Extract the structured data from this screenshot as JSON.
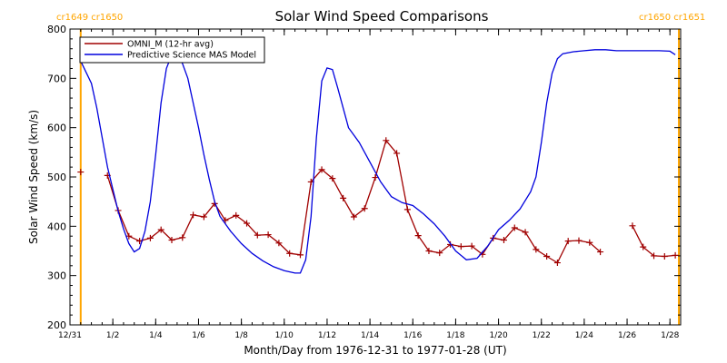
{
  "chart_data": {
    "type": "line",
    "title": "Solar Wind Speed Comparisons",
    "xlabel": "Month/Day from 1976-12-31 to 1977-01-28 (UT)",
    "ylabel": "Solar Wind Speed (km/s)",
    "ylim": [
      200,
      800
    ],
    "xlim": [
      "1976-12-31",
      "1977-01-28T12:00"
    ],
    "y_ticks": [
      200,
      300,
      400,
      500,
      600,
      700,
      800
    ],
    "x_ticks": [
      {
        "x": "1976-12-31",
        "label": "12/31"
      },
      {
        "x": "1977-01-02",
        "label": "1/2"
      },
      {
        "x": "1977-01-04",
        "label": "1/4"
      },
      {
        "x": "1977-01-06",
        "label": "1/6"
      },
      {
        "x": "1977-01-08",
        "label": "1/8"
      },
      {
        "x": "1977-01-10",
        "label": "1/10"
      },
      {
        "x": "1977-01-12",
        "label": "1/12"
      },
      {
        "x": "1977-01-14",
        "label": "1/14"
      },
      {
        "x": "1977-01-16",
        "label": "1/16"
      },
      {
        "x": "1977-01-18",
        "label": "1/18"
      },
      {
        "x": "1977-01-20",
        "label": "1/20"
      },
      {
        "x": "1977-01-22",
        "label": "1/22"
      },
      {
        "x": "1977-01-24",
        "label": "1/24"
      },
      {
        "x": "1977-01-26",
        "label": "1/26"
      },
      {
        "x": "1977-01-28",
        "label": "1/28"
      }
    ],
    "legend_position": "top-left",
    "vlines": [
      {
        "x": "1976-12-31T12:00",
        "label": "cr1649 cr1650",
        "color": "#ffa500",
        "label_side": "left"
      },
      {
        "x": "1977-01-28T10:00",
        "label": "cr1650 cr1651",
        "color": "#ffa500",
        "label_side": "right"
      }
    ],
    "series": [
      {
        "name": "OMNI_M (12-hr avg)",
        "color": "#a00000",
        "marker": "+",
        "segments": [
          [
            [
              "1976-12-31T12:00",
              510
            ]
          ],
          [
            [
              "1977-01-01T18:00",
              503
            ],
            [
              "1977-01-02T06:00",
              432
            ],
            [
              "1977-01-02T18:00",
              380
            ],
            [
              "1977-01-03T06:00",
              370
            ],
            [
              "1977-01-03T18:00",
              376
            ],
            [
              "1977-01-04T06:00",
              393
            ],
            [
              "1977-01-04T18:00",
              372
            ],
            [
              "1977-01-05T06:00",
              377
            ],
            [
              "1977-01-05T18:00",
              423
            ],
            [
              "1977-01-06T06:00",
              419
            ],
            [
              "1977-01-06T18:00",
              446
            ],
            [
              "1977-01-07T06:00",
              412
            ],
            [
              "1977-01-07T18:00",
              422
            ],
            [
              "1977-01-08T06:00",
              406
            ],
            [
              "1977-01-08T18:00",
              382
            ],
            [
              "1977-01-09T06:00",
              383
            ],
            [
              "1977-01-09T18:00",
              366
            ],
            [
              "1977-01-10T06:00",
              345
            ],
            [
              "1977-01-10T18:00",
              342
            ],
            [
              "1977-01-11T06:00",
              490
            ],
            [
              "1977-01-11T18:00",
              515
            ],
            [
              "1977-01-12T06:00",
              497
            ],
            [
              "1977-01-12T18:00",
              457
            ],
            [
              "1977-01-13T06:00",
              419
            ],
            [
              "1977-01-13T18:00",
              436
            ],
            [
              "1977-01-14T06:00",
              499
            ],
            [
              "1977-01-14T18:00",
              574
            ],
            [
              "1977-01-15T06:00",
              548
            ],
            [
              "1977-01-15T18:00",
              434
            ],
            [
              "1977-01-16T06:00",
              381
            ],
            [
              "1977-01-16T18:00",
              350
            ],
            [
              "1977-01-17T06:00",
              346
            ],
            [
              "1977-01-17T18:00",
              363
            ],
            [
              "1977-01-18T06:00",
              359
            ],
            [
              "1977-01-18T18:00",
              360
            ],
            [
              "1977-01-19T06:00",
              343
            ],
            [
              "1977-01-19T18:00",
              376
            ],
            [
              "1977-01-20T06:00",
              372
            ],
            [
              "1977-01-20T18:00",
              397
            ],
            [
              "1977-01-21T06:00",
              388
            ],
            [
              "1977-01-21T18:00",
              353
            ],
            [
              "1977-01-22T06:00",
              339
            ],
            [
              "1977-01-22T18:00",
              326
            ],
            [
              "1977-01-23T06:00",
              370
            ],
            [
              "1977-01-23T18:00",
              371
            ],
            [
              "1977-01-24T06:00",
              367
            ],
            [
              "1977-01-24T18:00",
              348
            ]
          ],
          [
            [
              "1977-01-26T06:00",
              401
            ],
            [
              "1977-01-26T18:00",
              358
            ],
            [
              "1977-01-27T06:00",
              340
            ],
            [
              "1977-01-27T18:00",
              339
            ],
            [
              "1977-01-28T06:00",
              341
            ]
          ]
        ]
      },
      {
        "name": "Predictive Science MAS Model",
        "color": "#0000dd",
        "marker": "none",
        "segments": [
          [
            [
              "1976-12-31T12:00",
              735
            ],
            [
              "1977-01-01T00:00",
              690
            ],
            [
              "1977-01-01T06:00",
              640
            ],
            [
              "1977-01-01T12:00",
              580
            ],
            [
              "1977-01-01T18:00",
              520
            ],
            [
              "1977-01-02T00:00",
              475
            ],
            [
              "1977-01-02T06:00",
              430
            ],
            [
              "1977-01-02T12:00",
              395
            ],
            [
              "1977-01-02T18:00",
              365
            ],
            [
              "1977-01-03T00:00",
              348
            ],
            [
              "1977-01-03T06:00",
              355
            ],
            [
              "1977-01-03T12:00",
              390
            ],
            [
              "1977-01-03T18:00",
              450
            ],
            [
              "1977-01-04T00:00",
              545
            ],
            [
              "1977-01-04T06:00",
              650
            ],
            [
              "1977-01-04T12:00",
              720
            ],
            [
              "1977-01-04T18:00",
              748
            ],
            [
              "1977-01-05T00:00",
              748
            ],
            [
              "1977-01-05T06:00",
              730
            ],
            [
              "1977-01-05T12:00",
              700
            ],
            [
              "1977-01-05T18:00",
              650
            ],
            [
              "1977-01-06T00:00",
              600
            ],
            [
              "1977-01-06T06:00",
              545
            ],
            [
              "1977-01-06T12:00",
              495
            ],
            [
              "1977-01-06T18:00",
              450
            ],
            [
              "1977-01-07T00:00",
              420
            ],
            [
              "1977-01-07T12:00",
              390
            ],
            [
              "1977-01-08T00:00",
              365
            ],
            [
              "1977-01-08T12:00",
              345
            ],
            [
              "1977-01-09T00:00",
              330
            ],
            [
              "1977-01-09T12:00",
              318
            ],
            [
              "1977-01-10T00:00",
              310
            ],
            [
              "1977-01-10T12:00",
              305
            ],
            [
              "1977-01-10T18:00",
              305
            ],
            [
              "1977-01-11T00:00",
              332
            ],
            [
              "1977-01-11T06:00",
              420
            ],
            [
              "1977-01-11T12:00",
              580
            ],
            [
              "1977-01-11T18:00",
              695
            ],
            [
              "1977-01-12T00:00",
              721
            ],
            [
              "1977-01-12T06:00",
              718
            ],
            [
              "1977-01-12T12:00",
              680
            ],
            [
              "1977-01-12T18:00",
              640
            ],
            [
              "1977-01-13T00:00",
              600
            ],
            [
              "1977-01-13T12:00",
              570
            ],
            [
              "1977-01-14T00:00",
              530
            ],
            [
              "1977-01-14T12:00",
              490
            ],
            [
              "1977-01-15T00:00",
              460
            ],
            [
              "1977-01-15T12:00",
              448
            ],
            [
              "1977-01-16T00:00",
              442
            ],
            [
              "1977-01-16T12:00",
              425
            ],
            [
              "1977-01-17T00:00",
              405
            ],
            [
              "1977-01-17T12:00",
              380
            ],
            [
              "1977-01-18T00:00",
              350
            ],
            [
              "1977-01-18T12:00",
              332
            ],
            [
              "1977-01-19T00:00",
              335
            ],
            [
              "1977-01-19T12:00",
              360
            ],
            [
              "1977-01-20T00:00",
              393
            ],
            [
              "1977-01-20T12:00",
              412
            ],
            [
              "1977-01-21T00:00",
              435
            ],
            [
              "1977-01-21T12:00",
              470
            ],
            [
              "1977-01-21T18:00",
              500
            ],
            [
              "1977-01-22T00:00",
              570
            ],
            [
              "1977-01-22T06:00",
              650
            ],
            [
              "1977-01-22T12:00",
              710
            ],
            [
              "1977-01-22T18:00",
              740
            ],
            [
              "1977-01-23T00:00",
              750
            ],
            [
              "1977-01-23T12:00",
              754
            ],
            [
              "1977-01-24T00:00",
              756
            ],
            [
              "1977-01-24T12:00",
              758
            ],
            [
              "1977-01-25T00:00",
              758
            ],
            [
              "1977-01-25T12:00",
              756
            ],
            [
              "1977-01-26T00:00",
              756
            ],
            [
              "1977-01-26T12:00",
              756
            ],
            [
              "1977-01-27T00:00",
              756
            ],
            [
              "1977-01-27T12:00",
              756
            ],
            [
              "1977-01-28T00:00",
              755
            ],
            [
              "1977-01-28T06:00",
              748
            ]
          ]
        ]
      }
    ]
  }
}
